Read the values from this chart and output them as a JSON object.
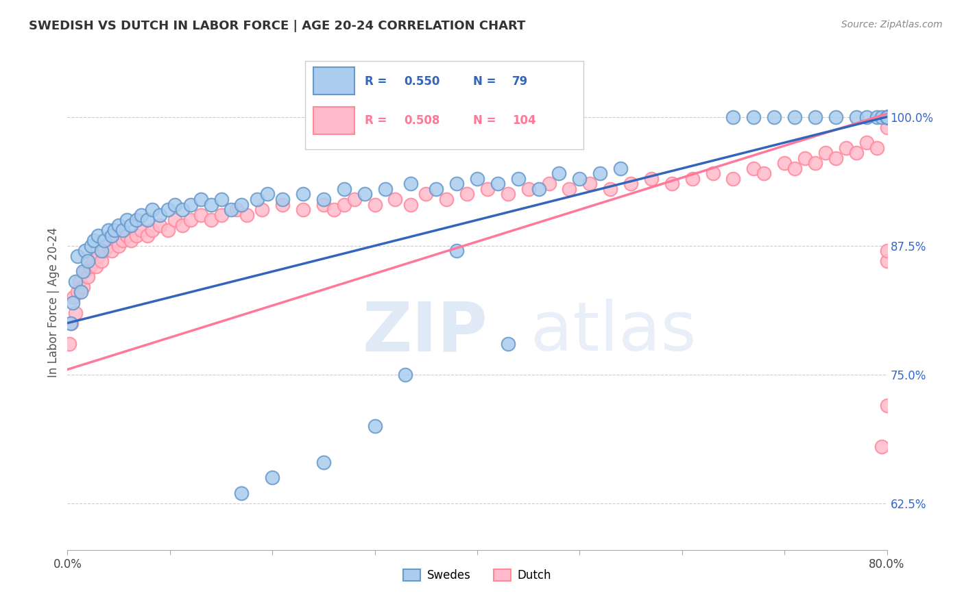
{
  "title": "SWEDISH VS DUTCH IN LABOR FORCE | AGE 20-24 CORRELATION CHART",
  "source": "Source: ZipAtlas.com",
  "ylabel": "In Labor Force | Age 20-24",
  "y_ticks": [
    62.5,
    75.0,
    87.5,
    100.0
  ],
  "y_tick_labels": [
    "62.5%",
    "75.0%",
    "87.5%",
    "100.0%"
  ],
  "legend_swedes": "Swedes",
  "legend_dutch": "Dutch",
  "R_swedes": 0.55,
  "N_swedes": 79,
  "R_dutch": 0.508,
  "N_dutch": 104,
  "swedes_color": "#AACCEE",
  "dutch_color": "#FFBBCC",
  "swedes_edge_color": "#6699CC",
  "dutch_edge_color": "#FF8899",
  "swedes_line_color": "#3366BB",
  "dutch_line_color": "#FF7799",
  "background_color": "#FFFFFF",
  "xlim": [
    0,
    80
  ],
  "ylim": [
    58,
    106
  ],
  "swedes_x": [
    0.3,
    0.5,
    0.8,
    1.0,
    1.3,
    1.5,
    1.7,
    2.0,
    2.3,
    2.6,
    3.0,
    3.3,
    3.6,
    4.0,
    4.3,
    4.6,
    5.0,
    5.4,
    5.8,
    6.2,
    6.7,
    7.2,
    7.8,
    8.3,
    9.0,
    9.8,
    10.5,
    11.2,
    12.0,
    13.0,
    14.0,
    15.0,
    16.0,
    17.0,
    18.5,
    19.5,
    21.0,
    23.0,
    25.0,
    27.0,
    29.0,
    31.0,
    33.5,
    36.0,
    38.0,
    40.0,
    42.0,
    44.0,
    46.0,
    48.0,
    50.0,
    52.0,
    54.0,
    38.0,
    43.0,
    33.0,
    30.0,
    25.0,
    20.0,
    17.0,
    65.0,
    67.0,
    69.0,
    71.0,
    73.0,
    75.0,
    77.0,
    78.0,
    79.0,
    79.5,
    80.0,
    80.0,
    80.0,
    80.0,
    80.0,
    80.0,
    80.0,
    80.0,
    80.0
  ],
  "swedes_y": [
    80.0,
    82.0,
    84.0,
    86.5,
    83.0,
    85.0,
    87.0,
    86.0,
    87.5,
    88.0,
    88.5,
    87.0,
    88.0,
    89.0,
    88.5,
    89.0,
    89.5,
    89.0,
    90.0,
    89.5,
    90.0,
    90.5,
    90.0,
    91.0,
    90.5,
    91.0,
    91.5,
    91.0,
    91.5,
    92.0,
    91.5,
    92.0,
    91.0,
    91.5,
    92.0,
    92.5,
    92.0,
    92.5,
    92.0,
    93.0,
    92.5,
    93.0,
    93.5,
    93.0,
    93.5,
    94.0,
    93.5,
    94.0,
    93.0,
    94.5,
    94.0,
    94.5,
    95.0,
    87.0,
    78.0,
    75.0,
    70.0,
    66.5,
    65.0,
    63.5,
    100.0,
    100.0,
    100.0,
    100.0,
    100.0,
    100.0,
    100.0,
    100.0,
    100.0,
    100.0,
    100.0,
    100.0,
    100.0,
    100.0,
    100.0,
    100.0,
    100.0,
    100.0,
    100.0
  ],
  "dutch_x": [
    0.2,
    0.4,
    0.6,
    0.8,
    1.0,
    1.2,
    1.5,
    1.7,
    2.0,
    2.2,
    2.5,
    2.8,
    3.0,
    3.3,
    3.6,
    4.0,
    4.3,
    4.7,
    5.0,
    5.4,
    5.8,
    6.2,
    6.7,
    7.2,
    7.8,
    8.3,
    9.0,
    9.8,
    10.5,
    11.2,
    12.0,
    13.0,
    14.0,
    15.0,
    16.5,
    17.5,
    19.0,
    21.0,
    23.0,
    25.0,
    26.0,
    27.0,
    28.0,
    30.0,
    32.0,
    33.5,
    35.0,
    37.0,
    39.0,
    41.0,
    43.0,
    45.0,
    47.0,
    49.0,
    51.0,
    53.0,
    55.0,
    57.0,
    59.0,
    61.0,
    63.0,
    65.0,
    67.0,
    68.0,
    70.0,
    71.0,
    72.0,
    73.0,
    74.0,
    75.0,
    76.0,
    77.0,
    78.0,
    79.0,
    79.5,
    80.0,
    80.0,
    80.0,
    80.0,
    80.0,
    80.0,
    80.0,
    80.0,
    80.0,
    80.0,
    80.0,
    80.0,
    80.0,
    80.0,
    80.0,
    80.0,
    80.0,
    80.0,
    80.0,
    80.0,
    80.0,
    80.0,
    80.0,
    80.0,
    80.0,
    80.0,
    80.0,
    80.0,
    80.0
  ],
  "dutch_y": [
    78.0,
    80.0,
    82.5,
    81.0,
    83.0,
    84.0,
    83.5,
    85.0,
    84.5,
    85.5,
    86.0,
    85.5,
    86.5,
    86.0,
    87.0,
    87.5,
    87.0,
    88.0,
    87.5,
    88.0,
    88.5,
    88.0,
    88.5,
    89.0,
    88.5,
    89.0,
    89.5,
    89.0,
    90.0,
    89.5,
    90.0,
    90.5,
    90.0,
    90.5,
    91.0,
    90.5,
    91.0,
    91.5,
    91.0,
    91.5,
    91.0,
    91.5,
    92.0,
    91.5,
    92.0,
    91.5,
    92.5,
    92.0,
    92.5,
    93.0,
    92.5,
    93.0,
    93.5,
    93.0,
    93.5,
    93.0,
    93.5,
    94.0,
    93.5,
    94.0,
    94.5,
    94.0,
    95.0,
    94.5,
    95.5,
    95.0,
    96.0,
    95.5,
    96.5,
    96.0,
    97.0,
    96.5,
    97.5,
    97.0,
    68.0,
    99.0,
    100.0,
    100.0,
    100.0,
    100.0,
    100.0,
    100.0,
    100.0,
    100.0,
    100.0,
    100.0,
    100.0,
    100.0,
    100.0,
    100.0,
    100.0,
    100.0,
    100.0,
    100.0,
    100.0,
    100.0,
    100.0,
    100.0,
    100.0,
    100.0,
    100.0,
    86.0,
    87.0,
    72.0
  ]
}
